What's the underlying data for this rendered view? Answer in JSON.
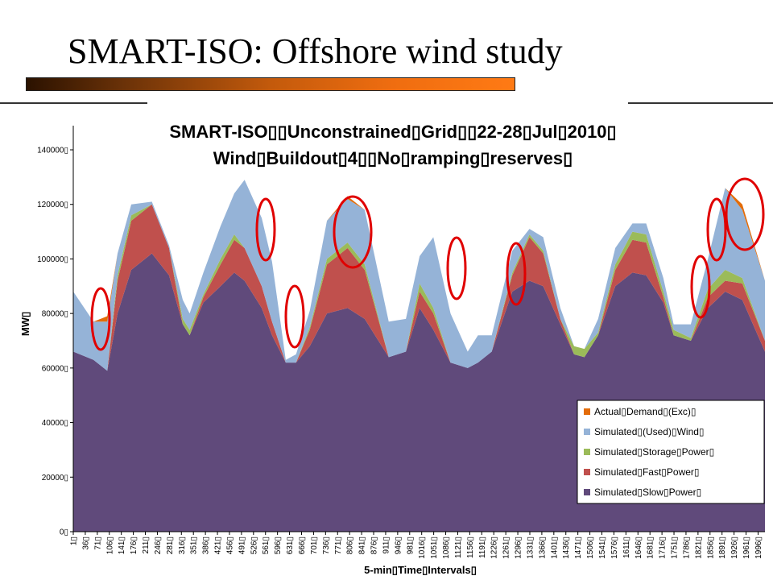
{
  "slide": {
    "title": "SMART-ISO: Offshore wind study"
  },
  "chart_data": {
    "type": "area",
    "stacked": true,
    "title_line1": "SMART-ISO▯▯Unconstrained▯Grid▯▯22-28▯Jul▯2010▯",
    "title_line2": "Wind▯Buildout▯4▯▯No▯ramping▯reserves▯",
    "xlabel": "5-min▯Time▯Intervals▯",
    "ylabel": "MW▯",
    "ylim": [
      0,
      140000
    ],
    "yticks": [
      0,
      20000,
      40000,
      60000,
      80000,
      100000,
      120000,
      140000
    ],
    "ytick_labels": [
      "0▯",
      "20000▯",
      "40000▯",
      "60000▯",
      "80000▯",
      "100000▯",
      "120000▯",
      "140000▯"
    ],
    "xlim": [
      1,
      2016
    ],
    "xtick_labels": [
      "1▯",
      "36▯",
      "71▯",
      "106▯",
      "141▯",
      "176▯",
      "211▯",
      "246▯",
      "281▯",
      "316▯",
      "351▯",
      "386▯",
      "421▯",
      "456▯",
      "491▯",
      "526▯",
      "561▯",
      "596▯",
      "631▯",
      "666▯",
      "701▯",
      "736▯",
      "771▯",
      "806▯",
      "841▯",
      "876▯",
      "911▯",
      "946▯",
      "981▯",
      "1016▯",
      "1051▯",
      "1086▯",
      "1121▯",
      "1156▯",
      "1191▯",
      "1226▯",
      "1261▯",
      "1296▯",
      "1331▯",
      "1366▯",
      "1401▯",
      "1436▯",
      "1471▯",
      "1506▯",
      "1541▯",
      "1576▯",
      "1611▯",
      "1646▯",
      "1681▯",
      "1716▯",
      "1751▯",
      "1786▯",
      "1821▯",
      "1856▯",
      "1891▯",
      "1926▯",
      "1961▯",
      "1996▯"
    ],
    "grid": false,
    "legend_position": "bottom-right",
    "x": [
      1,
      60,
      100,
      130,
      170,
      230,
      280,
      320,
      340,
      380,
      430,
      470,
      500,
      550,
      580,
      620,
      650,
      690,
      740,
      800,
      850,
      920,
      970,
      1010,
      1050,
      1100,
      1150,
      1180,
      1220,
      1280,
      1330,
      1370,
      1420,
      1460,
      1490,
      1530,
      1580,
      1630,
      1670,
      1720,
      1750,
      1800,
      1850,
      1900,
      1950,
      2016
    ],
    "series": [
      {
        "name": "Simulated▯Slow▯Power▯",
        "color": "#604a7b",
        "values": [
          66000,
          63000,
          59000,
          80000,
          96000,
          102000,
          94000,
          76000,
          72000,
          84000,
          90000,
          95000,
          92000,
          82000,
          72000,
          62000,
          62000,
          68000,
          80000,
          82000,
          78000,
          64000,
          66000,
          82000,
          74000,
          62000,
          60000,
          62000,
          66000,
          88000,
          92000,
          90000,
          76000,
          65000,
          64000,
          72000,
          90000,
          95000,
          94000,
          84000,
          72000,
          70000,
          82000,
          88000,
          85000,
          66000
        ]
      },
      {
        "name": "Simulated▯Fast▯Power▯",
        "color": "#c0504d",
        "values": [
          0,
          0,
          0,
          12000,
          18000,
          18000,
          10000,
          0,
          0,
          2000,
          8000,
          12000,
          12000,
          8000,
          5000,
          0,
          0,
          6000,
          18000,
          22000,
          18000,
          0,
          0,
          6000,
          6000,
          0,
          0,
          0,
          0,
          6000,
          16000,
          12000,
          2000,
          0,
          0,
          0,
          6000,
          12000,
          12000,
          2000,
          0,
          0,
          4000,
          4000,
          6000,
          4000
        ]
      },
      {
        "name": "Simulated▯Storage▯Power▯",
        "color": "#9bbb59",
        "values": [
          0,
          0,
          0,
          2000,
          2000,
          0,
          0,
          2000,
          2000,
          1000,
          2000,
          2000,
          0,
          0,
          0,
          0,
          0,
          1000,
          2000,
          2000,
          2000,
          0,
          0,
          3000,
          2000,
          0,
          0,
          0,
          0,
          1000,
          1000,
          1000,
          0,
          3000,
          3000,
          1000,
          2000,
          3000,
          3000,
          2000,
          2000,
          1000,
          3000,
          4000,
          2000,
          0
        ]
      },
      {
        "name": "Simulated▯(Used)▯Wind▯",
        "color": "#95b3d7",
        "values": [
          22000,
          14000,
          18000,
          8000,
          4000,
          1000,
          1000,
          7000,
          6000,
          8000,
          12000,
          15000,
          25000,
          25000,
          22000,
          1000,
          3000,
          6000,
          14000,
          16000,
          20000,
          13000,
          12000,
          10000,
          26000,
          18000,
          6000,
          10000,
          6000,
          8000,
          2000,
          5000,
          4000,
          0,
          0,
          5000,
          6000,
          3000,
          4000,
          5000,
          2000,
          5000,
          11000,
          30000,
          25000,
          22000
        ]
      },
      {
        "name": "Actual▯Demand▯(Exc)▯",
        "color": "#e36c09",
        "values": [
          0,
          0,
          2000,
          0,
          0,
          0,
          0,
          0,
          0,
          0,
          0,
          0,
          0,
          0,
          0,
          0,
          0,
          0,
          0,
          1000,
          0,
          0,
          0,
          0,
          0,
          0,
          0,
          0,
          0,
          0,
          0,
          0,
          0,
          0,
          0,
          0,
          0,
          0,
          0,
          0,
          0,
          0,
          0,
          0,
          2000,
          0
        ]
      }
    ],
    "highlight_ellipses_color": "#e00000"
  }
}
